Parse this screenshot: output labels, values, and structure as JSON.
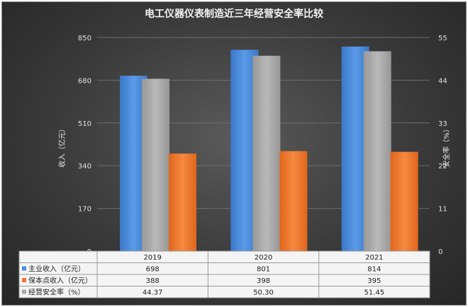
{
  "chart_data": {
    "type": "bar",
    "title": "电工仪器仪表制造近三年经营安全率比较",
    "categories": [
      "2019",
      "2020",
      "2021"
    ],
    "ylabel": "收入（亿元）",
    "y2label": "安全率（%）",
    "ylim": [
      0,
      850
    ],
    "yticks": [
      "0",
      "170",
      "340",
      "510",
      "680",
      "850"
    ],
    "y2lim": [
      0,
      55
    ],
    "y2ticks": [
      "0",
      "11",
      "22",
      "33",
      "44",
      "55"
    ],
    "grid": true,
    "legend": "bottom-table",
    "series": [
      {
        "name": "主业收入（亿元）",
        "axis": "left",
        "color": "#4a8fdd",
        "values": [
          698,
          801,
          814
        ],
        "labels": [
          "698",
          "801",
          "814"
        ]
      },
      {
        "name": "保本点收入（亿元）",
        "axis": "left",
        "color": "#ee7a2e",
        "values": [
          388,
          398,
          395
        ],
        "labels": [
          "388",
          "398",
          "395"
        ]
      },
      {
        "name": "经营安全率（%）",
        "axis": "right",
        "color": "#a8a8a8",
        "values": [
          44.37,
          50.3,
          51.45
        ],
        "labels": [
          "44.37",
          "50.30",
          "51.45"
        ]
      }
    ]
  }
}
